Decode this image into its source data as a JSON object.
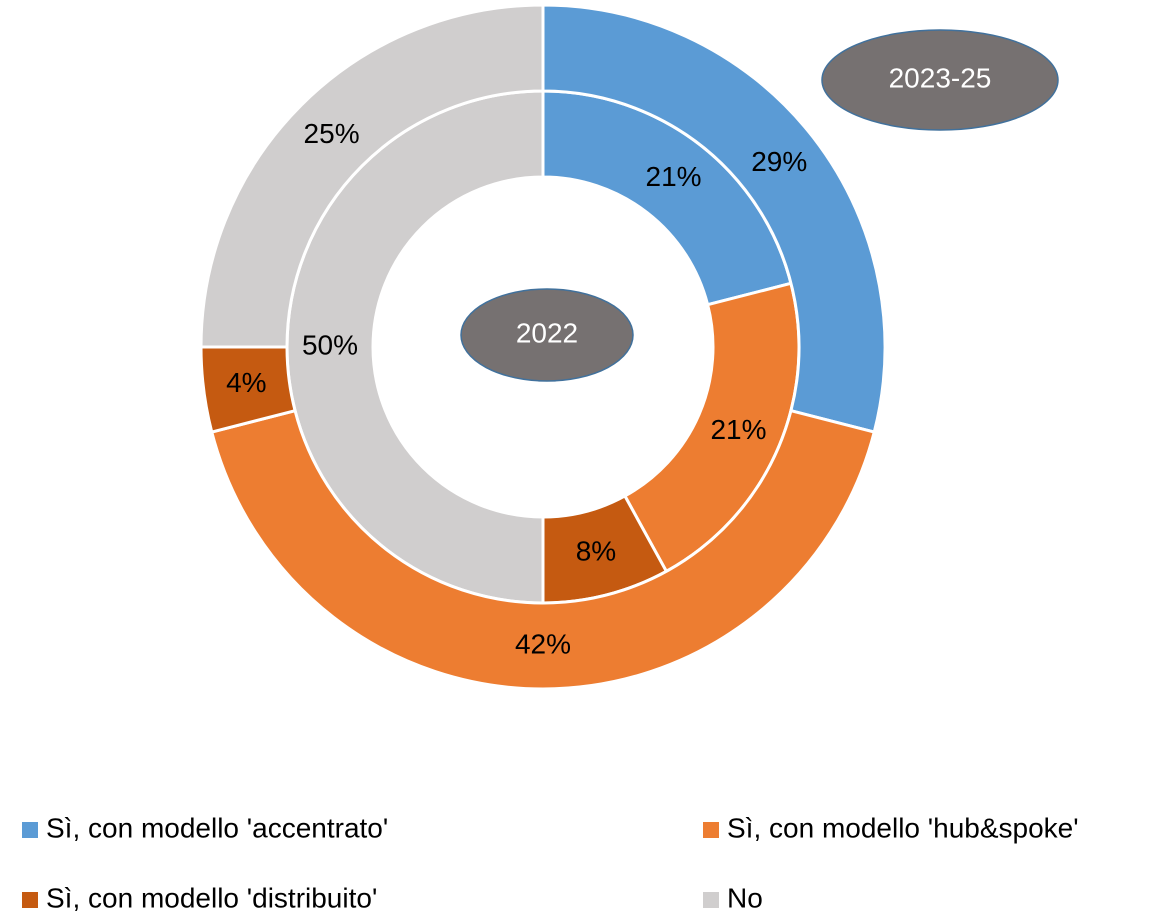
{
  "chart_data": {
    "type": "donut",
    "categories": [
      "Sì, con modello 'accentrato'",
      "Sì, con modello 'hub&spoke'",
      "Sì, con modello 'distribuito'",
      "No"
    ],
    "colors": [
      "#5b9bd5",
      "#ed7d31",
      "#c55a11",
      "#d0cece"
    ],
    "series": [
      {
        "name": "2022",
        "values": [
          21,
          21,
          8,
          50
        ],
        "value_labels": [
          "21%",
          "21%",
          "8%",
          "50%"
        ]
      },
      {
        "name": "2023-25",
        "values": [
          29,
          42,
          4,
          25
        ],
        "value_labels": [
          "29%",
          "42%",
          "4%",
          "25%"
        ]
      }
    ]
  }
}
